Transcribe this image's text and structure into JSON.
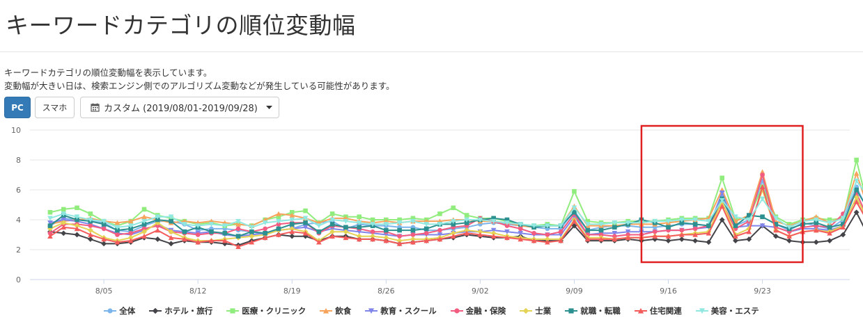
{
  "page": {
    "title": "キーワードカテゴリの順位変動幅",
    "description_line1": "キーワードカテゴリの順位変動幅を表示しています。",
    "description_line2": "変動幅が大きい日は、検索エンジン側でのアルゴリズム変動などが発生している可能性があります。"
  },
  "controls": {
    "pc_label": "PC",
    "smartphone_label": "スマホ",
    "date_range_label": "カスタム (2019/08/01-2019/09/28)",
    "calendar_icon": "calendar-icon",
    "dropdown_icon": "caret-down-icon",
    "active_color": "#337ab7"
  },
  "highlight_color": "#e02020",
  "chart_data": {
    "type": "line",
    "x_start": "2019/08/01",
    "x_end": "2019/09/28",
    "x_ticks": [
      "8/05",
      "8/12",
      "8/19",
      "8/26",
      "9/02",
      "9/09",
      "9/16",
      "9/23"
    ],
    "y_ticks": [
      "0",
      "2",
      "4",
      "6",
      "8",
      "10"
    ],
    "ylim": [
      0,
      10
    ],
    "grid": true,
    "legend_position": "bottom",
    "highlight_range": [
      "2019/09/14",
      "2019/09/26"
    ],
    "series": [
      {
        "name": "全体",
        "color": "#7cb5ec",
        "marker": "circle",
        "values": [
          3.6,
          4.1,
          4.0,
          3.9,
          3.8,
          3.3,
          3.2,
          3.6,
          3.9,
          3.9,
          3.7,
          3.3,
          3.4,
          3.4,
          3.3,
          3.2,
          3.0,
          3.3,
          3.4,
          3.7,
          3.8,
          3.9,
          3.4,
          3.7,
          3.6,
          3.6,
          3.5,
          3.5,
          3.3,
          3.3,
          3.4,
          3.5,
          3.7,
          3.8,
          3.7,
          3.6,
          3.5,
          3.4,
          3.4,
          4.6,
          3.3,
          3.5,
          3.6,
          3.6,
          3.5,
          3.5,
          3.6,
          3.7,
          3.7,
          3.6,
          5.6,
          3.6,
          4.0,
          6.6,
          3.7,
          3.3,
          3.8,
          3.6,
          3.4,
          4.0,
          6.2,
          4.3,
          3.9
        ]
      },
      {
        "name": "ホテル・旅行",
        "color": "#434348",
        "marker": "diamond",
        "values": [
          3.2,
          3.1,
          3.0,
          2.7,
          2.4,
          2.4,
          2.5,
          2.8,
          2.7,
          2.4,
          2.6,
          2.5,
          2.5,
          2.4,
          2.3,
          2.6,
          2.8,
          3.0,
          2.9,
          2.9,
          2.6,
          2.9,
          2.9,
          2.7,
          2.7,
          2.6,
          2.4,
          2.5,
          2.6,
          2.7,
          2.8,
          3.0,
          2.9,
          2.8,
          2.8,
          2.9,
          2.6,
          2.6,
          2.6,
          3.6,
          2.6,
          2.6,
          2.6,
          2.7,
          2.6,
          2.7,
          2.6,
          2.7,
          2.6,
          2.5,
          4.0,
          2.6,
          2.7,
          3.6,
          2.9,
          2.6,
          2.5,
          2.5,
          2.6,
          3.0,
          4.5,
          2.7,
          2.7
        ]
      },
      {
        "name": "医療・クリニック",
        "color": "#90ed7d",
        "marker": "square",
        "values": [
          4.5,
          4.7,
          4.8,
          4.4,
          3.9,
          3.6,
          3.9,
          4.7,
          4.3,
          4.1,
          3.9,
          3.7,
          3.8,
          3.6,
          3.7,
          3.6,
          4.0,
          4.2,
          4.5,
          4.6,
          3.8,
          4.4,
          4.2,
          4.2,
          4.0,
          4.0,
          4.0,
          4.1,
          4.0,
          4.4,
          4.8,
          4.3,
          4.1,
          4.1,
          3.9,
          3.7,
          3.6,
          3.7,
          3.6,
          5.9,
          3.9,
          3.8,
          3.8,
          3.9,
          3.9,
          3.9,
          4.0,
          4.1,
          4.1,
          4.1,
          6.8,
          4.0,
          4.2,
          6.2,
          4.2,
          3.7,
          4.0,
          4.1,
          4.0,
          4.1,
          8.0,
          4.3,
          4.0
        ]
      },
      {
        "name": "飲食",
        "color": "#f7a35c",
        "marker": "triangle",
        "values": [
          3.7,
          3.9,
          4.0,
          4.1,
          3.9,
          3.8,
          3.9,
          4.2,
          4.0,
          3.8,
          3.9,
          3.8,
          3.9,
          3.8,
          3.7,
          3.6,
          4.0,
          4.4,
          4.3,
          4.1,
          3.8,
          4.1,
          4.1,
          3.9,
          3.8,
          3.9,
          3.8,
          3.9,
          3.9,
          3.9,
          4.0,
          4.0,
          3.9,
          3.9,
          3.8,
          3.6,
          3.5,
          3.6,
          3.6,
          4.9,
          3.6,
          3.6,
          3.6,
          3.7,
          3.7,
          3.7,
          3.8,
          3.9,
          4.0,
          4.1,
          6.0,
          3.9,
          4.3,
          7.2,
          3.9,
          3.6,
          3.9,
          4.2,
          3.8,
          4.2,
          7.1,
          4.4,
          4.0
        ]
      },
      {
        "name": "教育・スクール",
        "color": "#8085e9",
        "marker": "triangle-down",
        "values": [
          3.8,
          4.0,
          3.9,
          3.7,
          3.4,
          3.1,
          3.0,
          3.3,
          3.7,
          3.3,
          3.2,
          3.1,
          3.2,
          3.0,
          2.9,
          3.0,
          3.1,
          3.3,
          3.4,
          3.5,
          3.2,
          3.4,
          3.3,
          3.2,
          3.1,
          3.0,
          2.9,
          3.0,
          3.0,
          3.0,
          3.1,
          3.2,
          3.2,
          3.3,
          3.2,
          3.1,
          3.0,
          3.0,
          3.0,
          4.2,
          3.0,
          3.1,
          3.1,
          3.2,
          3.2,
          3.2,
          3.3,
          3.3,
          3.4,
          3.5,
          5.8,
          3.5,
          3.6,
          3.6,
          3.5,
          3.2,
          3.4,
          3.4,
          3.3,
          3.6,
          5.5,
          3.7,
          3.5
        ]
      },
      {
        "name": "金融・保険",
        "color": "#f15c80",
        "marker": "circle",
        "values": [
          3.1,
          3.7,
          3.7,
          3.6,
          3.4,
          3.0,
          3.1,
          3.4,
          3.6,
          3.2,
          3.1,
          3.0,
          3.1,
          3.1,
          3.4,
          3.2,
          3.4,
          3.7,
          3.8,
          3.8,
          3.1,
          3.6,
          3.5,
          3.4,
          3.2,
          3.2,
          2.9,
          3.0,
          3.1,
          3.3,
          3.5,
          3.6,
          4.1,
          3.9,
          3.6,
          3.4,
          3.1,
          3.0,
          3.2,
          4.4,
          3.0,
          3.0,
          2.9,
          3.0,
          3.0,
          3.2,
          3.3,
          3.3,
          3.4,
          3.6,
          5.1,
          3.4,
          3.9,
          7.0,
          3.5,
          3.2,
          3.5,
          3.6,
          3.5,
          4.4,
          5.8,
          3.8,
          3.6
        ]
      },
      {
        "name": "士業",
        "color": "#e4d354",
        "marker": "diamond",
        "values": [
          3.4,
          3.8,
          3.6,
          3.3,
          2.8,
          2.6,
          2.8,
          3.2,
          3.8,
          3.2,
          2.8,
          2.6,
          2.6,
          2.7,
          2.8,
          2.9,
          3.0,
          3.3,
          3.4,
          3.2,
          2.6,
          3.2,
          3.2,
          2.9,
          2.9,
          2.8,
          2.6,
          2.7,
          2.7,
          2.8,
          3.1,
          3.3,
          3.2,
          3.1,
          2.9,
          2.8,
          2.7,
          2.7,
          2.7,
          4.0,
          2.8,
          2.8,
          2.7,
          2.8,
          2.8,
          2.9,
          2.9,
          3.0,
          3.1,
          3.2,
          5.2,
          3.0,
          3.4,
          6.0,
          3.3,
          2.9,
          3.2,
          3.3,
          3.2,
          3.6,
          5.5,
          3.7,
          3.4
        ]
      },
      {
        "name": "就職・転職",
        "color": "#2b908f",
        "marker": "square",
        "values": [
          3.6,
          4.3,
          4.0,
          3.9,
          3.7,
          3.3,
          3.4,
          3.7,
          4.0,
          3.9,
          3.2,
          3.5,
          3.2,
          3.1,
          2.9,
          3.2,
          3.1,
          3.4,
          3.7,
          3.8,
          3.2,
          3.7,
          3.5,
          3.5,
          3.6,
          3.3,
          3.3,
          3.3,
          3.4,
          3.7,
          3.7,
          3.8,
          4.0,
          4.1,
          4.0,
          3.7,
          3.5,
          3.6,
          3.6,
          4.5,
          3.3,
          3.3,
          3.5,
          3.7,
          4.0,
          3.8,
          3.5,
          3.8,
          3.7,
          3.6,
          5.4,
          3.6,
          4.3,
          4.2,
          3.7,
          3.4,
          3.7,
          3.8,
          3.5,
          3.7,
          6.0,
          4.5,
          3.9
        ]
      },
      {
        "name": "住宅関連",
        "color": "#f45b5b",
        "marker": "triangle",
        "values": [
          2.9,
          3.5,
          3.4,
          3.0,
          2.7,
          2.5,
          2.6,
          2.9,
          3.3,
          2.8,
          2.7,
          2.5,
          2.6,
          2.6,
          2.2,
          2.5,
          2.8,
          3.0,
          3.2,
          3.1,
          2.5,
          2.9,
          2.8,
          2.7,
          2.7,
          2.6,
          2.4,
          2.5,
          2.6,
          2.7,
          2.9,
          3.1,
          3.0,
          2.9,
          2.8,
          2.7,
          2.6,
          2.5,
          2.6,
          3.9,
          2.7,
          2.7,
          2.7,
          2.8,
          2.8,
          2.9,
          2.9,
          3.0,
          3.0,
          3.1,
          4.9,
          2.9,
          3.2,
          6.2,
          3.3,
          2.9,
          3.2,
          3.3,
          3.1,
          3.5,
          5.2,
          3.6,
          3.1
        ]
      },
      {
        "name": "美容・エステ",
        "color": "#91e8e1",
        "marker": "triangle-down",
        "values": [
          4.1,
          4.4,
          4.2,
          4.0,
          3.9,
          3.5,
          3.6,
          3.9,
          4.2,
          4.2,
          3.7,
          3.6,
          3.7,
          3.6,
          3.9,
          3.5,
          3.8,
          3.9,
          4.0,
          4.1,
          3.6,
          4.0,
          3.9,
          3.8,
          3.7,
          3.7,
          3.8,
          3.9,
          3.7,
          3.7,
          3.9,
          4.0,
          4.0,
          3.9,
          3.8,
          3.7,
          3.6,
          3.6,
          3.6,
          4.8,
          3.7,
          3.7,
          3.8,
          3.8,
          3.8,
          3.9,
          3.9,
          4.0,
          4.0,
          3.9,
          5.3,
          4.2,
          4.0,
          5.4,
          4.1,
          3.5,
          3.9,
          4.0,
          3.8,
          4.1,
          6.6,
          5.4,
          4.6
        ]
      }
    ]
  }
}
